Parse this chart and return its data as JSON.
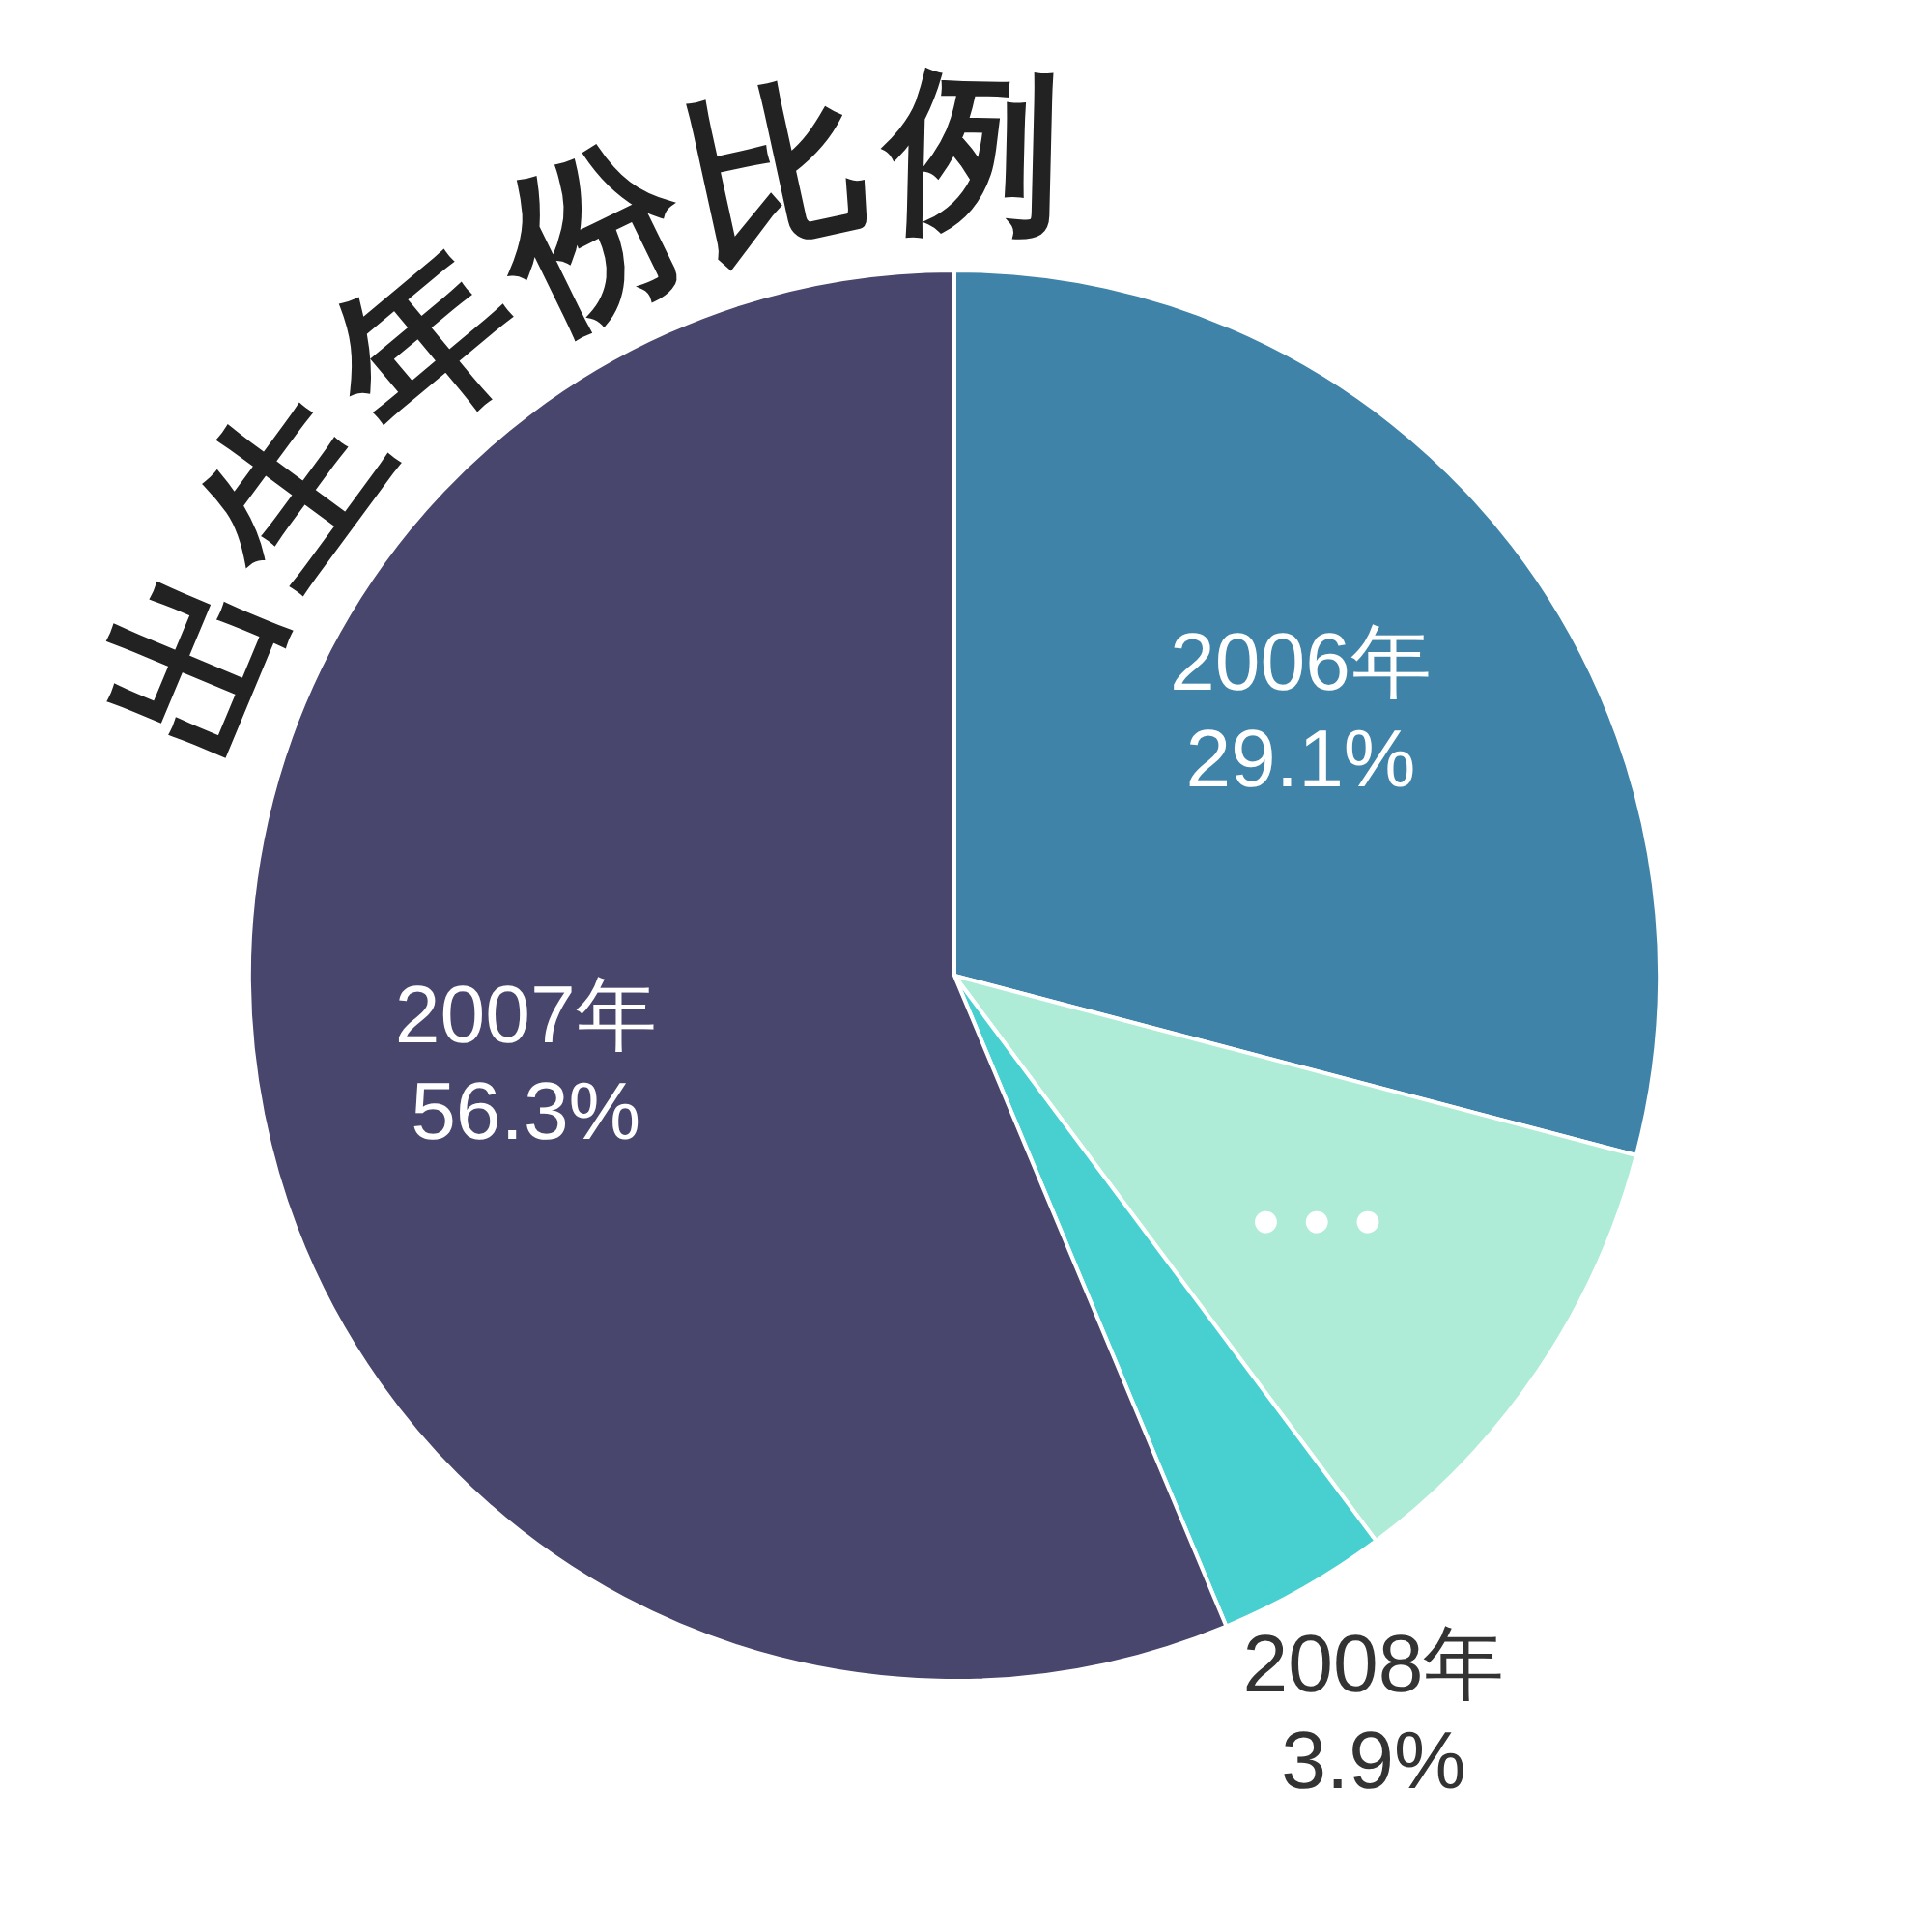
{
  "chart_data": {
    "type": "pie",
    "title": "出生年份比例",
    "categories": [
      "2006年",
      "• • •",
      "2008年",
      "2007年"
    ],
    "values": [
      29.1,
      10.7,
      3.9,
      56.3
    ],
    "value_labels": [
      "29.1%",
      null,
      "3.9%",
      "56.3%"
    ],
    "colors": [
      "#3f84a8",
      "#aeecd8",
      "#48d0d1",
      "#48466d"
    ]
  }
}
